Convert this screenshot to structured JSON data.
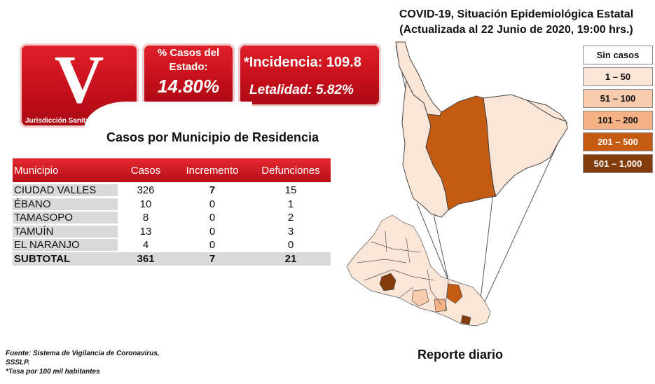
{
  "header": {
    "logo_letter": "V",
    "logo_subtitle": "Jurisdicción Sanitaria",
    "pct_label": "% Casos del Estado:",
    "pct_value": "14.80%",
    "incidence": "*Incidencia: 109.8",
    "lethality": "Letalidad: 5.82%"
  },
  "section_title": "Casos por Municipio  de Residencia",
  "table": {
    "columns": [
      "Municipio",
      "Casos",
      "Incremento",
      "Defunciones"
    ],
    "rows": [
      [
        "CIUDAD VALLES",
        "326",
        "7",
        "15"
      ],
      [
        "ÉBANO",
        "10",
        "0",
        "1"
      ],
      [
        "TAMASOPO",
        "8",
        "0",
        "2"
      ],
      [
        "TAMUÍN",
        "13",
        "0",
        "3"
      ],
      [
        "EL NARANJO",
        "4",
        "0",
        "0"
      ]
    ],
    "total": [
      "SUBTOTAL",
      "361",
      "7",
      "21"
    ]
  },
  "map": {
    "title_line1": "COVID-19, Situación Epidemiológica Estatal",
    "title_line2": "(Actualizada al 22 Junio de 2020, 19:00 hrs.)"
  },
  "legend": [
    {
      "label": "Sin casos",
      "color": "#ffffff",
      "text_color": "#111111"
    },
    {
      "label": "1 – 50",
      "color": "#fbe5d6",
      "text_color": "#111111"
    },
    {
      "label": "51 – 100",
      "color": "#f8cbad",
      "text_color": "#111111"
    },
    {
      "label": "101 – 200",
      "color": "#f4b183",
      "text_color": "#111111"
    },
    {
      "label": "201 – 500",
      "color": "#c55a11",
      "text_color": "#ffffff"
    },
    {
      "label": "501 – 1,000",
      "color": "#843c0c",
      "text_color": "#ffffff"
    }
  ],
  "footer": {
    "line1": "Fuente: Sistema de Vigilancia de Coronavirus,",
    "line2": "SSSLP.",
    "line3": "*Tasa por 100 mil habitantes"
  },
  "report_label": "Reporte diario"
}
